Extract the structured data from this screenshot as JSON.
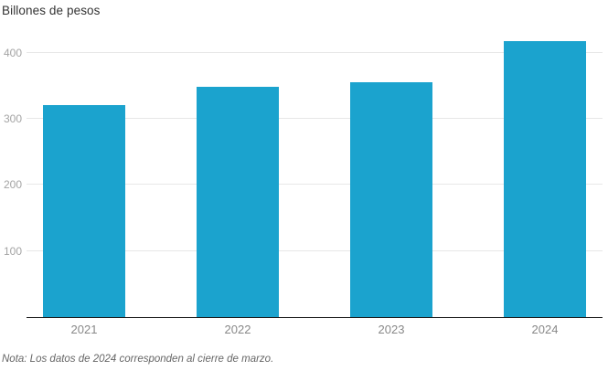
{
  "header": {
    "title": "Billones de pesos"
  },
  "footer": {
    "note": "Nota: Los datos de 2024 corresponden al cierre de marzo."
  },
  "colors": {
    "bar": "#1BA3CE",
    "gridline": "#E7E7E7",
    "axis_line": "#1A1A1A",
    "title_text": "#333333",
    "ytick_text": "#A4A4A4",
    "xlabel_text": "#888888",
    "note_text": "#666666",
    "background": "#FFFFFF"
  },
  "chart_data": {
    "type": "bar",
    "title": "Billones de pesos",
    "categories": [
      "2021",
      "2022",
      "2023",
      "2024"
    ],
    "values": [
      320,
      348,
      355,
      417
    ],
    "xlabel": "",
    "ylabel": "Billones de pesos",
    "ylim": [
      0,
      438
    ],
    "yticks": [
      100,
      200,
      300,
      400
    ],
    "grid": true,
    "legend": false,
    "note": "Nota: Los datos de 2024 corresponden al cierre de marzo."
  }
}
